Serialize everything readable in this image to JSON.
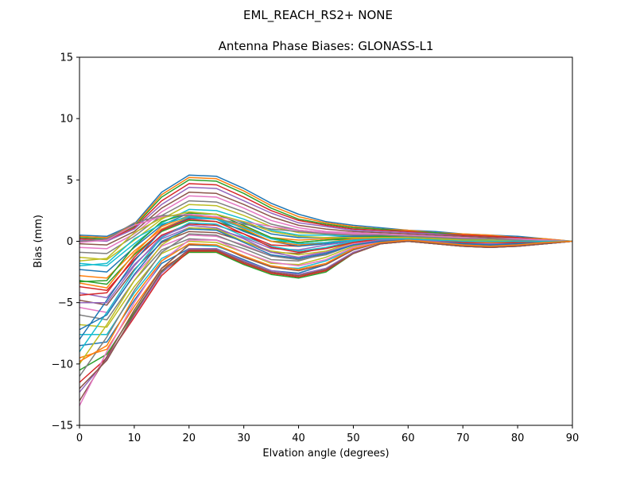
{
  "figure": {
    "suptitle": "EML_REACH_RS2+  NONE"
  },
  "chart_data": {
    "type": "line",
    "title": "Antenna Phase Biases: GLONASS-L1",
    "xlabel": "Elvation angle (degrees)",
    "ylabel": "Bias (mm)",
    "xlim": [
      0,
      90
    ],
    "ylim": [
      -15,
      15
    ],
    "xticks": [
      0,
      10,
      20,
      30,
      40,
      50,
      60,
      70,
      80,
      90
    ],
    "yticks": [
      -15,
      -10,
      -5,
      0,
      5,
      10,
      15
    ],
    "grid": false,
    "x": [
      0,
      5,
      10,
      15,
      20,
      25,
      30,
      35,
      40,
      45,
      50,
      55,
      60,
      65,
      70,
      75,
      80,
      85,
      90
    ],
    "series": [
      {
        "values": [
          0.5,
          0.4,
          1.4,
          4.0,
          5.4,
          5.3,
          4.3,
          3.1,
          2.2,
          1.6,
          1.3,
          1.1,
          0.9,
          0.8,
          0.6,
          0.5,
          0.4,
          0.2,
          0.0
        ]
      },
      {
        "values": [
          0.4,
          0.3,
          1.3,
          3.8,
          5.2,
          5.1,
          4.1,
          2.9,
          2.0,
          1.5,
          1.2,
          1.0,
          0.9,
          0.7,
          0.6,
          0.5,
          0.3,
          0.2,
          0.0
        ]
      },
      {
        "values": [
          0.3,
          0.2,
          1.2,
          3.6,
          5.0,
          4.9,
          3.9,
          2.7,
          1.8,
          1.4,
          1.1,
          1.0,
          0.8,
          0.7,
          0.5,
          0.4,
          0.3,
          0.1,
          0.0
        ]
      },
      {
        "values": [
          0.2,
          0.1,
          1.1,
          3.3,
          4.7,
          4.6,
          3.6,
          2.5,
          1.7,
          1.3,
          1.0,
          0.9,
          0.8,
          0.6,
          0.5,
          0.4,
          0.3,
          0.1,
          0.0
        ]
      },
      {
        "values": [
          0.1,
          0.0,
          1.0,
          3.0,
          4.4,
          4.3,
          3.3,
          2.3,
          1.5,
          1.2,
          0.9,
          0.8,
          0.7,
          0.6,
          0.4,
          0.3,
          0.2,
          0.1,
          0.0
        ]
      },
      {
        "values": [
          -0.2,
          -0.3,
          0.8,
          2.7,
          4.0,
          3.9,
          3.0,
          2.0,
          1.3,
          1.0,
          0.8,
          0.7,
          0.6,
          0.5,
          0.4,
          0.3,
          0.2,
          0.1,
          0.0
        ]
      },
      {
        "values": [
          -0.5,
          -0.6,
          0.6,
          2.4,
          3.7,
          3.6,
          2.7,
          1.7,
          1.1,
          0.8,
          0.7,
          0.6,
          0.5,
          0.4,
          0.3,
          0.2,
          0.2,
          0.1,
          0.0
        ]
      },
      {
        "values": [
          -0.9,
          -1.0,
          0.4,
          2.1,
          3.3,
          3.2,
          2.4,
          1.4,
          0.9,
          0.7,
          0.6,
          0.5,
          0.5,
          0.4,
          0.3,
          0.2,
          0.1,
          0.0,
          0.0
        ]
      },
      {
        "values": [
          -1.3,
          -1.5,
          0.1,
          1.8,
          3.0,
          2.9,
          2.1,
          1.2,
          0.7,
          0.6,
          0.5,
          0.5,
          0.4,
          0.3,
          0.2,
          0.1,
          0.1,
          0.0,
          0.0
        ]
      },
      {
        "values": [
          -1.8,
          -2.0,
          -0.2,
          1.5,
          2.6,
          2.5,
          1.8,
          0.9,
          0.5,
          0.5,
          0.4,
          0.4,
          0.4,
          0.3,
          0.2,
          0.1,
          0.1,
          0.0,
          0.0
        ]
      },
      {
        "values": [
          -2.3,
          -2.5,
          -0.5,
          1.3,
          2.3,
          2.2,
          1.5,
          0.6,
          0.3,
          0.3,
          0.4,
          0.4,
          0.3,
          0.2,
          0.1,
          0.1,
          0.0,
          0.0,
          0.0
        ]
      },
      {
        "values": [
          -2.8,
          -3.0,
          -0.8,
          1.0,
          2.0,
          1.9,
          1.2,
          0.3,
          0.1,
          0.2,
          0.3,
          0.3,
          0.3,
          0.2,
          0.1,
          0.0,
          0.0,
          0.0,
          0.0
        ]
      },
      {
        "values": [
          -3.2,
          -3.5,
          -1.1,
          0.8,
          1.7,
          1.6,
          0.9,
          0.0,
          -0.1,
          0.1,
          0.2,
          0.3,
          0.3,
          0.1,
          0.0,
          0.0,
          0.0,
          0.0,
          0.0
        ]
      },
      {
        "values": [
          -3.7,
          -4.0,
          -1.5,
          0.5,
          1.4,
          1.3,
          0.6,
          -0.3,
          -0.4,
          -0.1,
          0.1,
          0.2,
          0.2,
          0.1,
          0.0,
          -0.1,
          -0.1,
          0.0,
          0.0
        ]
      },
      {
        "values": [
          -4.2,
          -4.6,
          -1.9,
          0.2,
          1.1,
          1.0,
          0.3,
          -0.6,
          -0.7,
          -0.3,
          0.0,
          0.2,
          0.2,
          0.0,
          -0.1,
          -0.1,
          -0.1,
          0.0,
          0.0
        ]
      },
      {
        "values": [
          -4.8,
          -5.2,
          -2.3,
          -0.1,
          0.8,
          0.7,
          0.0,
          -0.9,
          -1.0,
          -0.5,
          -0.1,
          0.1,
          0.2,
          0.0,
          -0.1,
          -0.2,
          -0.1,
          -0.1,
          0.0
        ]
      },
      {
        "values": [
          -5.4,
          -5.8,
          -2.8,
          -0.4,
          0.5,
          0.4,
          -0.3,
          -1.2,
          -1.3,
          -0.8,
          -0.2,
          0.1,
          0.1,
          -0.1,
          -0.2,
          -0.2,
          -0.2,
          -0.1,
          0.0
        ]
      },
      {
        "values": [
          -6.0,
          -6.4,
          -3.2,
          -0.7,
          0.2,
          0.1,
          -0.6,
          -1.5,
          -1.6,
          -1.0,
          -0.3,
          0.0,
          0.1,
          -0.1,
          -0.2,
          -0.3,
          -0.2,
          -0.1,
          0.0
        ]
      },
      {
        "values": [
          -6.8,
          -7.0,
          -3.7,
          -1.0,
          0.0,
          -0.1,
          -0.9,
          -1.8,
          -1.9,
          -1.3,
          -0.4,
          0.0,
          0.1,
          -0.1,
          -0.3,
          -0.3,
          -0.3,
          -0.1,
          0.0
        ]
      },
      {
        "values": [
          -7.6,
          -7.6,
          -4.2,
          -1.4,
          -0.3,
          -0.4,
          -1.2,
          -2.1,
          -2.2,
          -1.6,
          -0.6,
          -0.1,
          0.0,
          -0.2,
          -0.3,
          -0.4,
          -0.3,
          -0.1,
          0.0
        ]
      },
      {
        "values": [
          -8.5,
          -8.2,
          -4.8,
          -1.8,
          -0.6,
          -0.6,
          -1.5,
          -2.4,
          -2.6,
          -1.9,
          -0.7,
          -0.1,
          0.0,
          -0.2,
          -0.4,
          -0.4,
          -0.3,
          -0.2,
          0.0
        ]
      },
      {
        "values": [
          -9.5,
          -8.8,
          -5.3,
          -2.2,
          -0.9,
          -0.9,
          -1.8,
          -2.6,
          -2.9,
          -2.3,
          -0.9,
          -0.2,
          0.0,
          -0.2,
          -0.4,
          -0.5,
          -0.4,
          -0.2,
          0.0
        ]
      },
      {
        "values": [
          -10.5,
          -9.2,
          -5.8,
          -2.5,
          -0.9,
          -0.9,
          -1.9,
          -2.7,
          -3.0,
          -2.5,
          -1.0,
          -0.2,
          0.0,
          -0.2,
          -0.4,
          -0.5,
          -0.4,
          -0.2,
          0.0
        ]
      },
      {
        "values": [
          -11.5,
          -9.5,
          -6.2,
          -2.8,
          -0.8,
          -0.8,
          -1.8,
          -2.6,
          -2.9,
          -2.4,
          -1.0,
          -0.2,
          0.0,
          -0.2,
          -0.4,
          -0.5,
          -0.4,
          -0.2,
          0.0
        ]
      },
      {
        "values": [
          -12.3,
          -9.6,
          -6.0,
          -2.6,
          -0.6,
          -0.6,
          -1.6,
          -2.4,
          -2.7,
          -2.2,
          -0.9,
          -0.2,
          0.1,
          -0.1,
          -0.3,
          -0.4,
          -0.4,
          -0.2,
          0.0
        ]
      },
      {
        "values": [
          -13.0,
          -9.4,
          -5.6,
          -2.2,
          -0.3,
          -0.3,
          -1.3,
          -2.1,
          -2.4,
          -1.9,
          -0.7,
          -0.1,
          0.1,
          -0.1,
          -0.3,
          -0.4,
          -0.3,
          -0.2,
          0.0
        ]
      },
      {
        "values": [
          -13.4,
          -9.0,
          -5.0,
          -1.6,
          0.1,
          0.1,
          -0.9,
          -1.7,
          -2.0,
          -1.5,
          -0.5,
          0.0,
          0.2,
          0.0,
          -0.2,
          -0.3,
          -0.3,
          -0.1,
          0.0
        ]
      },
      {
        "values": [
          -11.0,
          -7.8,
          -4.0,
          -0.9,
          0.6,
          0.5,
          -0.4,
          -1.2,
          -1.5,
          -1.1,
          -0.3,
          0.1,
          0.2,
          0.0,
          -0.2,
          -0.3,
          -0.2,
          -0.1,
          0.0
        ]
      },
      {
        "values": [
          -10.0,
          -6.8,
          -3.2,
          -0.3,
          1.1,
          1.0,
          0.0,
          -0.8,
          -1.1,
          -0.8,
          -0.1,
          0.2,
          0.3,
          0.1,
          -0.1,
          -0.2,
          -0.2,
          -0.1,
          0.0
        ]
      },
      {
        "values": [
          -9.0,
          -5.8,
          -2.4,
          0.3,
          1.5,
          1.4,
          0.4,
          -0.4,
          -0.8,
          -0.5,
          0.0,
          0.3,
          0.3,
          0.1,
          -0.1,
          -0.2,
          -0.1,
          -0.1,
          0.0
        ]
      },
      {
        "values": [
          -8.0,
          -4.8,
          -1.6,
          0.9,
          1.9,
          1.8,
          0.8,
          0.0,
          -0.4,
          -0.2,
          0.1,
          0.3,
          0.4,
          0.2,
          0.0,
          -0.1,
          -0.1,
          0.0,
          0.0
        ]
      },
      {
        "values": [
          -3.4,
          -3.8,
          -1.0,
          1.2,
          2.1,
          2.0,
          1.0,
          0.0,
          -0.3,
          -0.1,
          0.2,
          0.3,
          0.4,
          0.2,
          0.0,
          -0.1,
          -0.1,
          0.0,
          0.0
        ]
      },
      {
        "values": [
          -3.3,
          -3.2,
          -0.4,
          1.6,
          2.3,
          2.2,
          1.3,
          0.3,
          -0.1,
          0.1,
          0.3,
          0.4,
          0.4,
          0.2,
          0.1,
          0.0,
          0.0,
          0.0,
          0.0
        ]
      },
      {
        "values": [
          -4.4,
          -4.2,
          -1.3,
          0.9,
          1.8,
          1.6,
          0.6,
          -0.5,
          -0.9,
          -0.6,
          -0.1,
          0.2,
          0.3,
          0.1,
          -0.1,
          -0.2,
          -0.1,
          0.0,
          0.0
        ]
      },
      {
        "values": [
          -5.0,
          -5.0,
          -2.0,
          0.4,
          1.3,
          1.1,
          0.2,
          -0.9,
          -1.3,
          -0.9,
          -0.3,
          0.1,
          0.2,
          0.0,
          -0.2,
          -0.2,
          -0.2,
          -0.1,
          0.0
        ]
      },
      {
        "values": [
          -12.0,
          -9.7,
          -5.9,
          -2.4,
          -0.7,
          -0.7,
          -1.7,
          -2.5,
          -2.8,
          -2.3,
          -1.0,
          -0.2,
          0.0,
          -0.2,
          -0.4,
          -0.5,
          -0.4,
          -0.2,
          0.0
        ]
      },
      {
        "values": [
          -0.1,
          0.1,
          1.3,
          2.0,
          2.2,
          2.0,
          1.6,
          1.2,
          0.9,
          0.7,
          0.6,
          0.5,
          0.5,
          0.4,
          0.3,
          0.2,
          0.1,
          0.1,
          0.0
        ]
      },
      {
        "values": [
          0.0,
          0.2,
          1.5,
          2.1,
          2.1,
          1.8,
          1.4,
          1.0,
          0.8,
          0.6,
          0.5,
          0.5,
          0.4,
          0.3,
          0.2,
          0.2,
          0.1,
          0.0,
          0.0
        ]
      },
      {
        "values": [
          -1.6,
          -1.4,
          0.7,
          1.9,
          2.4,
          2.2,
          1.6,
          0.8,
          0.4,
          0.3,
          0.3,
          0.3,
          0.3,
          0.2,
          0.1,
          0.1,
          0.0,
          0.0,
          0.0
        ]
      },
      {
        "values": [
          -2.0,
          -1.8,
          0.2,
          1.4,
          2.0,
          1.8,
          1.1,
          0.2,
          -0.2,
          -0.1,
          0.1,
          0.2,
          0.2,
          0.1,
          0.0,
          0.0,
          0.0,
          0.0,
          0.0
        ]
      },
      {
        "values": [
          -7.2,
          -6.0,
          -2.7,
          0.0,
          1.0,
          0.9,
          -0.1,
          -1.1,
          -1.4,
          -1.0,
          -0.3,
          0.0,
          0.1,
          -0.1,
          -0.2,
          -0.3,
          -0.2,
          -0.1,
          0.0
        ]
      },
      {
        "values": [
          -9.8,
          -8.5,
          -4.5,
          -1.6,
          -0.2,
          -0.3,
          -1.2,
          -2.0,
          -2.3,
          -1.8,
          -0.6,
          -0.1,
          0.1,
          -0.1,
          -0.3,
          -0.4,
          -0.3,
          -0.1,
          0.0
        ]
      }
    ]
  }
}
